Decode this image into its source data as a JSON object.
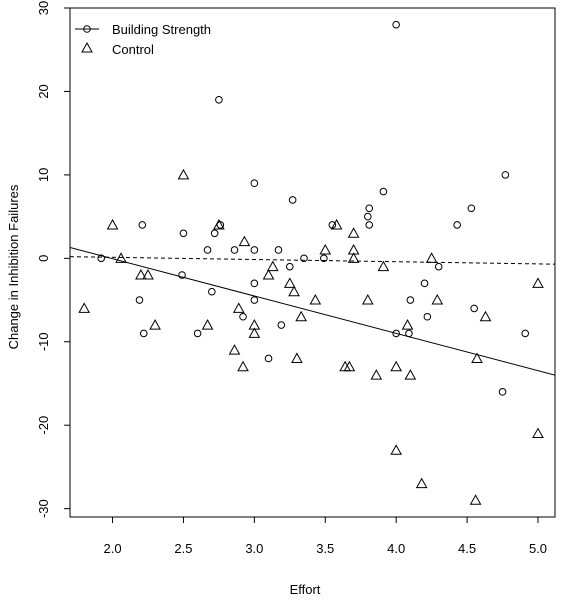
{
  "chart_data": {
    "type": "scatter",
    "title": "",
    "xlabel": "Effort",
    "ylabel": "Change in Inhibition Failures",
    "xlim": [
      1.7,
      5.12
    ],
    "ylim": [
      -31,
      30
    ],
    "xticks": [
      2.0,
      2.5,
      3.0,
      3.5,
      4.0,
      4.5,
      5.0
    ],
    "xtick_labels": [
      "2.0",
      "2.5",
      "3.0",
      "3.5",
      "4.0",
      "4.5",
      "5.0"
    ],
    "yticks": [
      -30,
      -20,
      -10,
      0,
      10,
      20,
      30
    ],
    "ytick_labels": [
      "-30",
      "-20",
      "-10",
      "0",
      "10",
      "20",
      "30"
    ],
    "grid": false,
    "legend": {
      "position": "top-left"
    },
    "series": [
      {
        "name": "Building Strength",
        "marker": "circle",
        "line_style": "solid",
        "points": [
          [
            1.92,
            0
          ],
          [
            2.21,
            4
          ],
          [
            2.22,
            -9
          ],
          [
            2.19,
            -5
          ],
          [
            2.49,
            -2
          ],
          [
            2.5,
            3
          ],
          [
            2.6,
            -9
          ],
          [
            2.67,
            1
          ],
          [
            2.7,
            -4
          ],
          [
            2.72,
            3
          ],
          [
            2.75,
            19
          ],
          [
            2.76,
            4
          ],
          [
            2.86,
            1
          ],
          [
            2.92,
            -7
          ],
          [
            3.0,
            9
          ],
          [
            3.0,
            1
          ],
          [
            3.0,
            -3
          ],
          [
            3.0,
            -5
          ],
          [
            3.1,
            -12
          ],
          [
            3.17,
            1
          ],
          [
            3.19,
            -8
          ],
          [
            3.25,
            -1
          ],
          [
            3.27,
            7
          ],
          [
            3.35,
            0
          ],
          [
            3.49,
            0
          ],
          [
            3.55,
            4
          ],
          [
            3.8,
            5
          ],
          [
            3.81,
            6
          ],
          [
            3.81,
            4
          ],
          [
            3.91,
            8
          ],
          [
            4.0,
            28
          ],
          [
            4.0,
            -9
          ],
          [
            4.09,
            -9
          ],
          [
            4.1,
            -5
          ],
          [
            4.2,
            -3
          ],
          [
            4.22,
            -7
          ],
          [
            4.3,
            -1
          ],
          [
            4.43,
            4
          ],
          [
            4.53,
            6
          ],
          [
            4.55,
            -6
          ],
          [
            4.75,
            -16
          ],
          [
            4.77,
            10
          ],
          [
            4.91,
            -9
          ]
        ],
        "fit_line": [
          [
            1.7,
            1.3
          ],
          [
            5.12,
            -14.0
          ]
        ]
      },
      {
        "name": "Control",
        "marker": "triangle",
        "line_style": "dashed",
        "points": [
          [
            1.8,
            -6
          ],
          [
            2.0,
            4
          ],
          [
            2.06,
            0
          ],
          [
            2.2,
            -2
          ],
          [
            2.25,
            -2
          ],
          [
            2.3,
            -8
          ],
          [
            2.5,
            10
          ],
          [
            2.67,
            -8
          ],
          [
            2.75,
            4
          ],
          [
            2.86,
            -11
          ],
          [
            2.89,
            -6
          ],
          [
            2.92,
            -13
          ],
          [
            2.93,
            2
          ],
          [
            3.0,
            -8
          ],
          [
            3.0,
            -9
          ],
          [
            3.1,
            -2
          ],
          [
            3.13,
            -1
          ],
          [
            3.25,
            -3
          ],
          [
            3.28,
            -4
          ],
          [
            3.3,
            -12
          ],
          [
            3.33,
            -7
          ],
          [
            3.43,
            -5
          ],
          [
            3.5,
            1
          ],
          [
            3.58,
            4
          ],
          [
            3.64,
            -13
          ],
          [
            3.67,
            -13
          ],
          [
            3.7,
            1
          ],
          [
            3.7,
            0
          ],
          [
            3.7,
            3
          ],
          [
            3.8,
            -5
          ],
          [
            3.86,
            -14
          ],
          [
            3.91,
            -1
          ],
          [
            4.0,
            -13
          ],
          [
            4.0,
            -23
          ],
          [
            4.08,
            -8
          ],
          [
            4.1,
            -14
          ],
          [
            4.18,
            -27
          ],
          [
            4.25,
            0
          ],
          [
            4.29,
            -5
          ],
          [
            4.56,
            -29
          ],
          [
            4.57,
            -12
          ],
          [
            4.63,
            -7
          ],
          [
            5.0,
            -3
          ],
          [
            5.0,
            -21
          ]
        ],
        "fit_line": [
          [
            1.7,
            0.2
          ],
          [
            5.12,
            -0.7
          ]
        ]
      }
    ]
  }
}
